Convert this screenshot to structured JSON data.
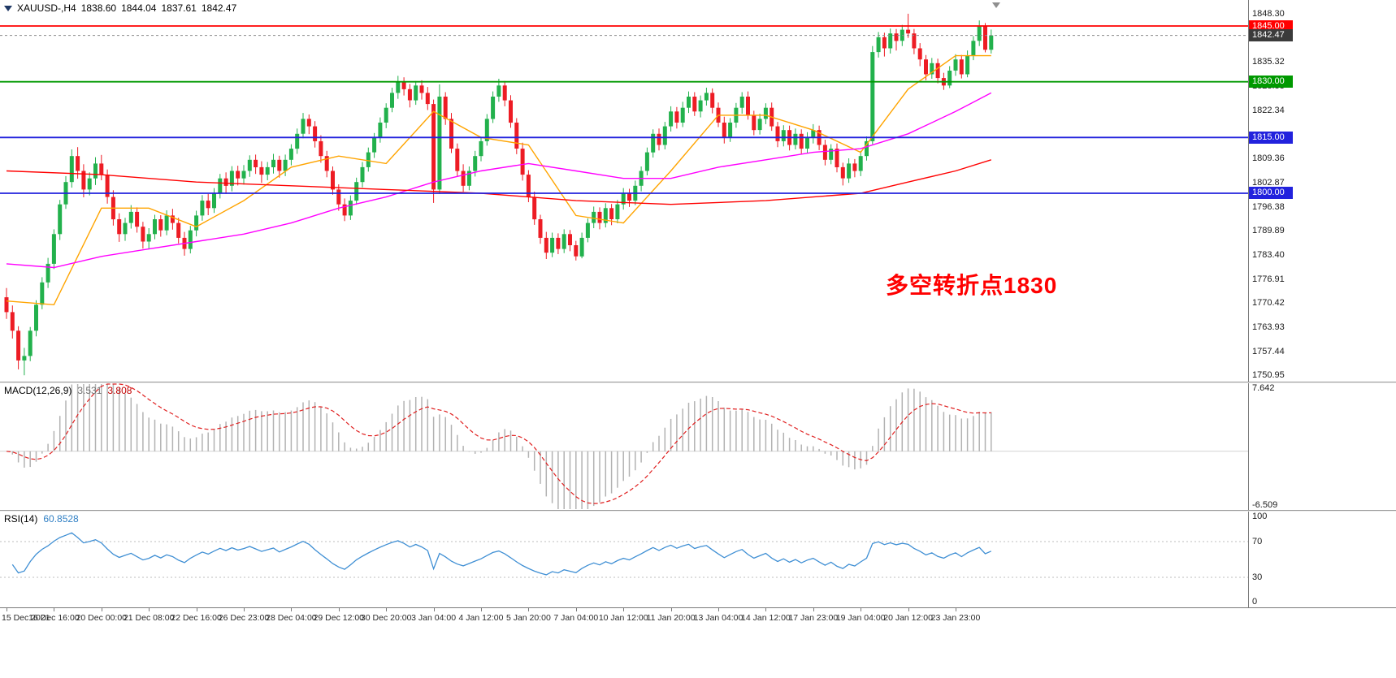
{
  "header": {
    "symbol_timeframe": "XAUUSD-,H4",
    "open": "1838.60",
    "high": "1844.04",
    "low": "1837.61",
    "close": "1842.47"
  },
  "annotation": {
    "text": "多空转折点1830",
    "color": "#ff0000"
  },
  "hlines": [
    {
      "price": 1845.0,
      "label": "1845.00",
      "color": "#ff0000"
    },
    {
      "price": 1830.0,
      "label": "1830.00",
      "color": "#009900"
    },
    {
      "price": 1815.0,
      "label": "1815.00",
      "color": "#2222dd"
    },
    {
      "price": 1800.0,
      "label": "1800.00",
      "color": "#2222dd"
    }
  ],
  "current_price": {
    "price": 1842.47,
    "label": "1842.47",
    "color": "#3b3b3b"
  },
  "chart_data": {
    "type": "candlestick",
    "symbol": "XAUUSD-",
    "timeframe": "H4",
    "colors": {
      "up": "#22b14c",
      "down": "#ed1c24",
      "background": "#ffffff"
    },
    "y_axis": {
      "min": 1749.3,
      "max": 1852.0,
      "tick_labels": [
        "1848.30",
        "1835.32",
        "1828.83",
        "1822.34",
        "1809.36",
        "1802.87",
        "1796.38",
        "1789.89",
        "1783.40",
        "1776.91",
        "1770.42",
        "1763.93",
        "1757.44",
        "1750.95"
      ]
    },
    "x_labels": [
      {
        "idx": 0,
        "label": "15 Dec 2021"
      },
      {
        "idx": 8,
        "label": "16 Dec 16:00"
      },
      {
        "idx": 16,
        "label": "20 Dec 00:00"
      },
      {
        "idx": 24,
        "label": "21 Dec 08:00"
      },
      {
        "idx": 32,
        "label": "22 Dec 16:00"
      },
      {
        "idx": 40,
        "label": "26 Dec 23:00"
      },
      {
        "idx": 48,
        "label": "28 Dec 04:00"
      },
      {
        "idx": 56,
        "label": "29 Dec 12:00"
      },
      {
        "idx": 64,
        "label": "30 Dec 20:00"
      },
      {
        "idx": 72,
        "label": "3 Jan 04:00"
      },
      {
        "idx": 80,
        "label": "4 Jan 12:00"
      },
      {
        "idx": 88,
        "label": "5 Jan 20:00"
      },
      {
        "idx": 96,
        "label": "7 Jan 04:00"
      },
      {
        "idx": 104,
        "label": "10 Jan 12:00"
      },
      {
        "idx": 112,
        "label": "11 Jan 20:00"
      },
      {
        "idx": 120,
        "label": "13 Jan 04:00"
      },
      {
        "idx": 128,
        "label": "14 Jan 12:00"
      },
      {
        "idx": 136,
        "label": "17 Jan 23:00"
      },
      {
        "idx": 144,
        "label": "19 Jan 04:00"
      },
      {
        "idx": 152,
        "label": "20 Jan 12:00"
      },
      {
        "idx": 160,
        "label": "23 Jan 23:00"
      }
    ],
    "candles": [
      [
        1772,
        1774.5,
        1766.2,
        1768
      ],
      [
        1768,
        1769.8,
        1760.9,
        1763
      ],
      [
        1763,
        1764.2,
        1752.6,
        1755
      ],
      [
        1755,
        1758.4,
        1751,
        1756.2
      ],
      [
        1756.2,
        1764,
        1754.8,
        1763
      ],
      [
        1763,
        1771.2,
        1761.5,
        1770
      ],
      [
        1770,
        1777.4,
        1768.8,
        1776
      ],
      [
        1776,
        1782.6,
        1774.5,
        1781
      ],
      [
        1781,
        1790.3,
        1779.6,
        1789
      ],
      [
        1789,
        1798.2,
        1787.4,
        1797
      ],
      [
        1797,
        1804.6,
        1795.8,
        1803
      ],
      [
        1803,
        1811.8,
        1801.5,
        1810
      ],
      [
        1810,
        1812.4,
        1803.9,
        1806
      ],
      [
        1806,
        1807.8,
        1798.9,
        1801
      ],
      [
        1801,
        1805.6,
        1799.4,
        1804
      ],
      [
        1804,
        1809.7,
        1802.2,
        1808
      ],
      [
        1808,
        1810.3,
        1803.5,
        1805
      ],
      [
        1805,
        1806.4,
        1797.2,
        1799
      ],
      [
        1799,
        1800.8,
        1791.3,
        1793
      ],
      [
        1793,
        1794.6,
        1786.9,
        1789
      ],
      [
        1789,
        1793.4,
        1787.2,
        1792
      ],
      [
        1792,
        1796.8,
        1790.5,
        1795
      ],
      [
        1795,
        1796.2,
        1789.4,
        1791
      ],
      [
        1791,
        1792.3,
        1785.1,
        1787
      ],
      [
        1787,
        1790.6,
        1784.9,
        1789
      ],
      [
        1789,
        1794.2,
        1787.6,
        1793
      ],
      [
        1793,
        1794.1,
        1788.3,
        1790
      ],
      [
        1790,
        1795.4,
        1788.7,
        1794
      ],
      [
        1794,
        1795.8,
        1790.2,
        1792
      ],
      [
        1792,
        1793.4,
        1786.5,
        1788
      ],
      [
        1788,
        1789.6,
        1783.2,
        1785
      ],
      [
        1785,
        1791.2,
        1783.8,
        1790
      ],
      [
        1790,
        1795.3,
        1788.4,
        1794
      ],
      [
        1794,
        1799.5,
        1792.6,
        1798
      ],
      [
        1798,
        1799.8,
        1794.1,
        1796
      ],
      [
        1796,
        1801.4,
        1794.7,
        1800
      ],
      [
        1800,
        1805.2,
        1798.6,
        1804
      ],
      [
        1804,
        1805.6,
        1799.8,
        1802
      ],
      [
        1802,
        1807.3,
        1800.5,
        1806
      ],
      [
        1806,
        1807.4,
        1802.1,
        1804
      ],
      [
        1804,
        1807.6,
        1802.3,
        1806
      ],
      [
        1806,
        1810.2,
        1804.4,
        1809
      ],
      [
        1809,
        1810.4,
        1805.2,
        1807
      ],
      [
        1807,
        1808.6,
        1802.8,
        1805
      ],
      [
        1805,
        1808.4,
        1803.5,
        1807
      ],
      [
        1807,
        1810.6,
        1805.3,
        1809
      ],
      [
        1809,
        1810.1,
        1804.2,
        1806
      ],
      [
        1806,
        1810.4,
        1804.6,
        1809
      ],
      [
        1809,
        1813.2,
        1807.5,
        1812
      ],
      [
        1812,
        1817.4,
        1810.6,
        1816
      ],
      [
        1816,
        1821.6,
        1814.8,
        1820
      ],
      [
        1820,
        1821.2,
        1815.9,
        1818
      ],
      [
        1818,
        1819.4,
        1812.3,
        1814
      ],
      [
        1814,
        1815.6,
        1808.2,
        1810
      ],
      [
        1810,
        1811.4,
        1804.3,
        1806
      ],
      [
        1806,
        1807.2,
        1799.6,
        1801
      ],
      [
        1801,
        1802.4,
        1795.3,
        1797
      ],
      [
        1797,
        1798.6,
        1792.5,
        1794
      ],
      [
        1794,
        1799.4,
        1792.8,
        1798
      ],
      [
        1798,
        1804.2,
        1796.9,
        1803
      ],
      [
        1803,
        1808.4,
        1801.6,
        1807
      ],
      [
        1807,
        1812.3,
        1805.8,
        1811
      ],
      [
        1811,
        1816.2,
        1809.5,
        1815
      ],
      [
        1815,
        1820.4,
        1813.6,
        1819
      ],
      [
        1819,
        1824.2,
        1817.5,
        1823
      ],
      [
        1823,
        1828.4,
        1821.8,
        1827
      ],
      [
        1827,
        1831.6,
        1825.4,
        1830
      ],
      [
        1830,
        1831.2,
        1826.3,
        1828
      ],
      [
        1828,
        1829.4,
        1823.1,
        1825
      ],
      [
        1825,
        1830.2,
        1823.8,
        1829
      ],
      [
        1829,
        1830.4,
        1825.2,
        1827
      ],
      [
        1827,
        1828.6,
        1822.4,
        1824
      ],
      [
        1824,
        1825.2,
        1797.4,
        1801
      ],
      [
        1801,
        1829.3,
        1799.8,
        1826
      ],
      [
        1826,
        1827.2,
        1818.4,
        1820
      ],
      [
        1820,
        1821.6,
        1810.8,
        1812
      ],
      [
        1812,
        1813.4,
        1804.6,
        1806
      ],
      [
        1806,
        1807.8,
        1800.4,
        1802
      ],
      [
        1802,
        1807.2,
        1800.8,
        1806
      ],
      [
        1806,
        1811.4,
        1804.5,
        1810
      ],
      [
        1810,
        1815.2,
        1808.6,
        1814
      ],
      [
        1814,
        1821.3,
        1812.8,
        1820
      ],
      [
        1820,
        1827.4,
        1818.9,
        1826
      ],
      [
        1826,
        1830.8,
        1824.6,
        1829
      ],
      [
        1829,
        1830.2,
        1823.4,
        1825
      ],
      [
        1825,
        1826.4,
        1817.6,
        1819
      ],
      [
        1819,
        1820.2,
        1810.5,
        1812
      ],
      [
        1812,
        1813.6,
        1803.4,
        1805
      ],
      [
        1805,
        1806.2,
        1797.6,
        1799
      ],
      [
        1799,
        1800.4,
        1791.5,
        1793
      ],
      [
        1793,
        1794.2,
        1786.4,
        1788
      ],
      [
        1788,
        1789.6,
        1782.3,
        1784
      ],
      [
        1784,
        1789.4,
        1782.8,
        1788
      ],
      [
        1788,
        1789.2,
        1783.6,
        1785
      ],
      [
        1785,
        1790.3,
        1783.9,
        1789
      ],
      [
        1789,
        1790.1,
        1784.4,
        1786
      ],
      [
        1786,
        1787.2,
        1781.9,
        1783
      ],
      [
        1783,
        1789.4,
        1782.5,
        1788
      ],
      [
        1788,
        1793.2,
        1786.8,
        1792
      ],
      [
        1792,
        1796.4,
        1790.6,
        1795
      ],
      [
        1795,
        1796.2,
        1790.3,
        1792
      ],
      [
        1792,
        1797.3,
        1790.8,
        1796
      ],
      [
        1796,
        1797.1,
        1791.4,
        1793
      ],
      [
        1793,
        1798.2,
        1791.9,
        1797
      ],
      [
        1797,
        1801.4,
        1795.6,
        1800
      ],
      [
        1800,
        1801.2,
        1796.3,
        1798
      ],
      [
        1798,
        1803.4,
        1796.8,
        1802
      ],
      [
        1802,
        1807.2,
        1800.5,
        1806
      ],
      [
        1806,
        1812.3,
        1804.8,
        1811
      ],
      [
        1811,
        1817.2,
        1809.6,
        1816
      ],
      [
        1816,
        1817.4,
        1811.5,
        1813
      ],
      [
        1813,
        1819.2,
        1811.8,
        1818
      ],
      [
        1818,
        1823.4,
        1816.6,
        1822
      ],
      [
        1822,
        1823.2,
        1817.4,
        1819
      ],
      [
        1819,
        1824.6,
        1817.8,
        1823
      ],
      [
        1823,
        1827.4,
        1821.6,
        1826
      ],
      [
        1826,
        1827.2,
        1820.8,
        1822
      ],
      [
        1822,
        1826.3,
        1820.4,
        1825
      ],
      [
        1825,
        1828.4,
        1823.6,
        1827
      ],
      [
        1827,
        1828.2,
        1821.5,
        1823
      ],
      [
        1823,
        1824.4,
        1817.8,
        1819
      ],
      [
        1819,
        1820.6,
        1813.4,
        1815
      ],
      [
        1815,
        1820.2,
        1813.8,
        1819
      ],
      [
        1819,
        1824.3,
        1817.6,
        1823
      ],
      [
        1823,
        1827.2,
        1821.4,
        1826
      ],
      [
        1826,
        1827.4,
        1819.8,
        1821
      ],
      [
        1821,
        1822.2,
        1815.6,
        1817
      ],
      [
        1817,
        1821.4,
        1815.8,
        1820
      ],
      [
        1820,
        1824.2,
        1818.6,
        1823
      ],
      [
        1823,
        1824.4,
        1816.8,
        1818
      ],
      [
        1818,
        1819.2,
        1812.4,
        1814
      ],
      [
        1814,
        1818.3,
        1812.6,
        1817
      ],
      [
        1817,
        1818.2,
        1811.5,
        1813
      ],
      [
        1813,
        1817.4,
        1811.8,
        1816
      ],
      [
        1816,
        1817.2,
        1810.6,
        1812
      ],
      [
        1812,
        1816.4,
        1810.9,
        1815
      ],
      [
        1815,
        1818.6,
        1813.4,
        1817
      ],
      [
        1817,
        1818.2,
        1811.6,
        1813
      ],
      [
        1813,
        1814.4,
        1807.5,
        1809
      ],
      [
        1809,
        1813.2,
        1807.8,
        1812
      ],
      [
        1812,
        1813.4,
        1805.6,
        1807
      ],
      [
        1807,
        1808.2,
        1802.1,
        1804
      ],
      [
        1804,
        1809.4,
        1802.8,
        1808
      ],
      [
        1808,
        1809.2,
        1804.3,
        1806
      ],
      [
        1806,
        1811.4,
        1804.6,
        1810
      ],
      [
        1810,
        1815.3,
        1808.8,
        1814
      ],
      [
        1814,
        1839.6,
        1813.2,
        1838
      ],
      [
        1838,
        1843.4,
        1836.5,
        1842
      ],
      [
        1842,
        1843.2,
        1836.8,
        1839
      ],
      [
        1839,
        1844.3,
        1837.6,
        1843
      ],
      [
        1843,
        1844.2,
        1838.4,
        1841
      ],
      [
        1841,
        1845.3,
        1839.6,
        1844
      ],
      [
        1844,
        1848.3,
        1841.8,
        1843
      ],
      [
        1843,
        1844.2,
        1837.4,
        1839
      ],
      [
        1839,
        1840.4,
        1834.2,
        1836
      ],
      [
        1836,
        1837.2,
        1830.4,
        1832
      ],
      [
        1832,
        1836.4,
        1830.8,
        1835
      ],
      [
        1835,
        1836.2,
        1829.6,
        1831
      ],
      [
        1831,
        1832.4,
        1827.8,
        1829
      ],
      [
        1829,
        1834.2,
        1828.3,
        1833
      ],
      [
        1833,
        1837.4,
        1831.6,
        1836
      ],
      [
        1836,
        1837.2,
        1830.9,
        1832
      ],
      [
        1832,
        1838.4,
        1831.2,
        1837
      ],
      [
        1837,
        1842.3,
        1835.8,
        1841
      ],
      [
        1841,
        1846.5,
        1839.6,
        1845
      ],
      [
        1845,
        1845.8,
        1837.9,
        1838.6
      ],
      [
        1838.6,
        1844.04,
        1837.61,
        1842.47
      ]
    ],
    "moving_averages": [
      {
        "name": "ma-fast-line",
        "color": "#ffa400",
        "points": [
          [
            0,
            1771
          ],
          [
            8,
            1770
          ],
          [
            16,
            1796
          ],
          [
            24,
            1796
          ],
          [
            32,
            1791
          ],
          [
            40,
            1798
          ],
          [
            48,
            1807
          ],
          [
            56,
            1810
          ],
          [
            64,
            1808
          ],
          [
            72,
            1822
          ],
          [
            80,
            1815
          ],
          [
            88,
            1813
          ],
          [
            96,
            1794
          ],
          [
            104,
            1792
          ],
          [
            112,
            1806
          ],
          [
            120,
            1821
          ],
          [
            128,
            1821
          ],
          [
            136,
            1817
          ],
          [
            144,
            1811
          ],
          [
            152,
            1828
          ],
          [
            160,
            1837
          ],
          [
            166,
            1837
          ]
        ]
      },
      {
        "name": "ma-medium-line",
        "color": "#ff00ff",
        "points": [
          [
            0,
            1781
          ],
          [
            8,
            1780
          ],
          [
            16,
            1783
          ],
          [
            24,
            1785
          ],
          [
            32,
            1787
          ],
          [
            40,
            1789
          ],
          [
            48,
            1792
          ],
          [
            56,
            1796
          ],
          [
            64,
            1799
          ],
          [
            72,
            1803
          ],
          [
            80,
            1806
          ],
          [
            88,
            1808
          ],
          [
            96,
            1806
          ],
          [
            104,
            1804
          ],
          [
            112,
            1804
          ],
          [
            120,
            1807
          ],
          [
            128,
            1809
          ],
          [
            136,
            1811
          ],
          [
            144,
            1812
          ],
          [
            152,
            1816
          ],
          [
            160,
            1822
          ],
          [
            166,
            1827
          ]
        ]
      },
      {
        "name": "ma-slow-line",
        "color": "#ff0000",
        "points": [
          [
            0,
            1806
          ],
          [
            16,
            1805
          ],
          [
            32,
            1803
          ],
          [
            48,
            1802
          ],
          [
            64,
            1801
          ],
          [
            80,
            1800
          ],
          [
            96,
            1798
          ],
          [
            112,
            1797
          ],
          [
            128,
            1798
          ],
          [
            144,
            1800
          ],
          [
            152,
            1803
          ],
          [
            160,
            1806
          ],
          [
            166,
            1809
          ]
        ]
      }
    ],
    "indicators": [
      {
        "name": "MACD",
        "label": "MACD(12,26,9)",
        "value_main": "3.531",
        "value_signal": "3.808",
        "range": [
          -6.509,
          7.642
        ],
        "scale_labels": [
          "7.642",
          "-6.509"
        ],
        "histogram_color": "#b2b2b2",
        "signal_color": "#e02020",
        "zero_line_color": "#d4d4d4"
      },
      {
        "name": "RSI",
        "label": "RSI(14)",
        "value": "60.8528",
        "range": [
          0,
          100
        ],
        "levels": [
          70,
          30
        ],
        "scale_labels": [
          "100",
          "70",
          "30",
          "0"
        ],
        "line_color": "#3f8fd4",
        "level_line_color": "#bdbdbd"
      }
    ]
  }
}
